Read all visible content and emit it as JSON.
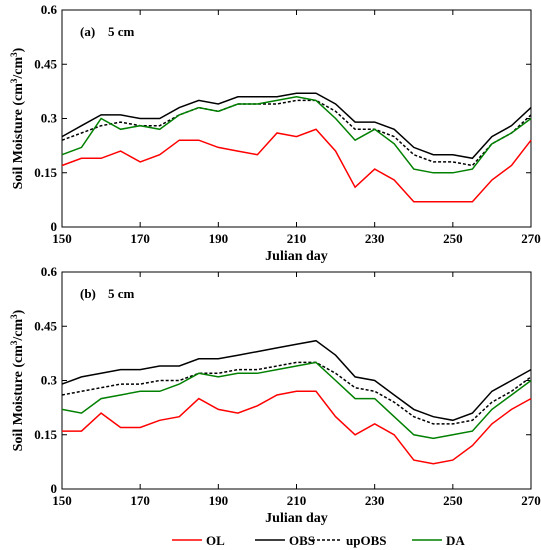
{
  "colors": {
    "OL": "#ff0000",
    "OBS": "#000000",
    "upOBS": "#000000",
    "DA": "#008000"
  },
  "legend": [
    {
      "key": "OL",
      "label": "OL"
    },
    {
      "key": "OBS",
      "label": "OBS"
    },
    {
      "key": "upOBS",
      "label": "upOBS"
    },
    {
      "key": "DA",
      "label": "DA"
    }
  ],
  "chart_data": [
    {
      "type": "line",
      "panel_label": "(a)",
      "depth_label": "5 cm",
      "xlabel": "Julian day",
      "ylabel_base": "Soil Moisture (cm",
      "ylabel_sup1": "3",
      "ylabel_mid": "/cm",
      "ylabel_sup2": "3",
      "ylabel_end": ")",
      "xlim": [
        150,
        270
      ],
      "ylim": [
        0,
        0.6
      ],
      "xticks": [
        150,
        170,
        190,
        210,
        230,
        250,
        270
      ],
      "yticks": [
        0,
        0.15,
        0.3,
        0.45,
        0.6
      ],
      "xtick_labels": [
        "150",
        "170",
        "190",
        "210",
        "230",
        "250",
        "270"
      ],
      "ytick_labels": [
        "0",
        "0.15",
        "0.3",
        "0.45",
        "0.6"
      ],
      "x": [
        150,
        155,
        160,
        165,
        170,
        175,
        180,
        185,
        190,
        195,
        200,
        205,
        210,
        215,
        220,
        225,
        230,
        235,
        240,
        245,
        250,
        255,
        260,
        265,
        270
      ],
      "series": [
        {
          "name": "OL",
          "values": [
            0.17,
            0.19,
            0.19,
            0.21,
            0.18,
            0.2,
            0.24,
            0.24,
            0.22,
            0.21,
            0.2,
            0.26,
            0.25,
            0.27,
            0.21,
            0.11,
            0.16,
            0.13,
            0.07,
            0.07,
            0.07,
            0.07,
            0.13,
            0.17,
            0.24
          ]
        },
        {
          "name": "OBS",
          "values": [
            0.25,
            0.28,
            0.31,
            0.31,
            0.3,
            0.3,
            0.33,
            0.35,
            0.34,
            0.36,
            0.36,
            0.36,
            0.37,
            0.37,
            0.34,
            0.29,
            0.29,
            0.27,
            0.22,
            0.2,
            0.2,
            0.19,
            0.25,
            0.28,
            0.33
          ]
        },
        {
          "name": "upOBS",
          "values": [
            0.24,
            0.26,
            0.28,
            0.29,
            0.28,
            0.28,
            0.31,
            0.33,
            0.32,
            0.34,
            0.34,
            0.34,
            0.35,
            0.35,
            0.32,
            0.27,
            0.27,
            0.25,
            0.2,
            0.18,
            0.18,
            0.17,
            0.23,
            0.26,
            0.31
          ]
        },
        {
          "name": "DA",
          "values": [
            0.2,
            0.22,
            0.3,
            0.27,
            0.28,
            0.27,
            0.31,
            0.33,
            0.32,
            0.34,
            0.34,
            0.35,
            0.36,
            0.35,
            0.3,
            0.24,
            0.27,
            0.23,
            0.16,
            0.15,
            0.15,
            0.16,
            0.23,
            0.26,
            0.3
          ]
        }
      ]
    },
    {
      "type": "line",
      "panel_label": "(b)",
      "depth_label": "5 cm",
      "xlabel": "Julian day",
      "ylabel_base": "Soil Moisture (cm",
      "ylabel_sup1": "3",
      "ylabel_mid": "/cm",
      "ylabel_sup2": "3",
      "ylabel_end": ")",
      "xlim": [
        150,
        270
      ],
      "ylim": [
        0,
        0.6
      ],
      "xticks": [
        150,
        170,
        190,
        210,
        230,
        250,
        270
      ],
      "yticks": [
        0,
        0.15,
        0.3,
        0.45,
        0.6
      ],
      "xtick_labels": [
        "150",
        "170",
        "190",
        "210",
        "230",
        "250",
        "270"
      ],
      "ytick_labels": [
        "0",
        "0.15",
        "0.3",
        "0.45",
        "0.6"
      ],
      "x": [
        150,
        155,
        160,
        165,
        170,
        175,
        180,
        185,
        190,
        195,
        200,
        205,
        210,
        215,
        220,
        225,
        230,
        235,
        240,
        245,
        250,
        255,
        260,
        265,
        270
      ],
      "series": [
        {
          "name": "OL",
          "values": [
            0.16,
            0.16,
            0.21,
            0.17,
            0.17,
            0.19,
            0.2,
            0.25,
            0.22,
            0.21,
            0.23,
            0.26,
            0.27,
            0.27,
            0.2,
            0.15,
            0.18,
            0.15,
            0.08,
            0.07,
            0.08,
            0.12,
            0.18,
            0.22,
            0.25
          ]
        },
        {
          "name": "OBS",
          "values": [
            0.29,
            0.31,
            0.32,
            0.33,
            0.33,
            0.34,
            0.34,
            0.36,
            0.36,
            0.37,
            0.38,
            0.39,
            0.4,
            0.41,
            0.37,
            0.31,
            0.3,
            0.26,
            0.22,
            0.2,
            0.19,
            0.21,
            0.27,
            0.3,
            0.33
          ]
        },
        {
          "name": "upOBS",
          "values": [
            0.26,
            0.27,
            0.28,
            0.29,
            0.29,
            0.3,
            0.3,
            0.32,
            0.32,
            0.33,
            0.33,
            0.34,
            0.35,
            0.35,
            0.32,
            0.28,
            0.27,
            0.24,
            0.2,
            0.18,
            0.18,
            0.19,
            0.24,
            0.27,
            0.31
          ]
        },
        {
          "name": "DA",
          "values": [
            0.22,
            0.21,
            0.25,
            0.26,
            0.27,
            0.27,
            0.29,
            0.32,
            0.31,
            0.32,
            0.32,
            0.33,
            0.34,
            0.35,
            0.3,
            0.25,
            0.25,
            0.2,
            0.15,
            0.14,
            0.15,
            0.16,
            0.22,
            0.26,
            0.3
          ]
        }
      ]
    }
  ]
}
